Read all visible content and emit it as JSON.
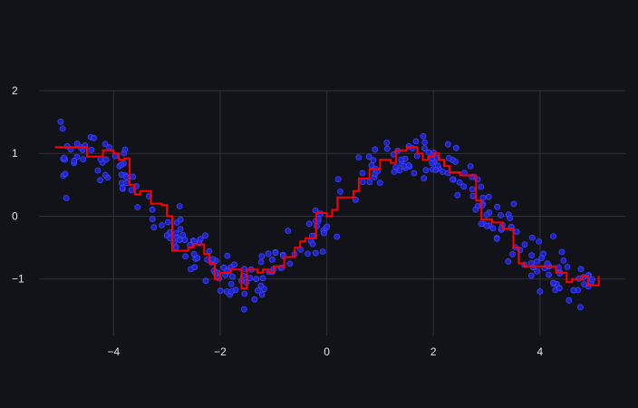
{
  "chart_data": {
    "type": "scatter",
    "title": "",
    "xlabel": "",
    "ylabel": "",
    "xlim": [
      -5.4,
      5.6
    ],
    "ylim": [
      -1.9,
      2.0
    ],
    "grid": true,
    "x_ticks": [
      -4,
      -2,
      0,
      2,
      4
    ],
    "x_tick_labels": [
      "−4",
      "−2",
      "0",
      "2",
      "4"
    ],
    "y_ticks": [
      -1,
      0,
      1,
      2
    ],
    "y_tick_labels": [
      "−1",
      "0",
      "1",
      "2"
    ],
    "scatter": {
      "color": "#2323d4",
      "edge_color": "#3a46ff",
      "trend": "sin(x)",
      "noise_sd": 0.2,
      "x_range": [
        -5.0,
        5.0
      ],
      "count": 300
    },
    "step_series": {
      "color": "#ff0000",
      "x": [
        -5.1,
        -4.8,
        -4.5,
        -4.2,
        -4.0,
        -3.9,
        -3.8,
        -3.7,
        -3.6,
        -3.5,
        -3.3,
        -3.1,
        -3.0,
        -2.9,
        -2.6,
        -2.5,
        -2.3,
        -2.2,
        -2.1,
        -2.0,
        -1.8,
        -1.6,
        -1.5,
        -1.3,
        -1.2,
        -1.1,
        -1.0,
        -0.8,
        -0.6,
        -0.5,
        -0.4,
        -0.3,
        -0.2,
        0.0,
        0.1,
        0.2,
        0.4,
        0.5,
        0.6,
        0.8,
        1.0,
        1.2,
        1.3,
        1.5,
        1.7,
        1.8,
        1.9,
        2.0,
        2.1,
        2.2,
        2.3,
        2.5,
        2.8,
        2.9,
        3.0,
        3.1,
        3.3,
        3.5,
        3.6,
        3.7,
        4.0,
        4.3,
        4.5,
        4.6,
        4.8,
        4.9,
        5.1
      ],
      "y": [
        1.1,
        1.1,
        0.95,
        1.05,
        1.0,
        0.9,
        0.92,
        0.5,
        0.35,
        0.4,
        0.2,
        0.18,
        0.0,
        -0.55,
        -0.5,
        -0.45,
        -0.6,
        -0.75,
        -1.0,
        -0.9,
        -0.85,
        -1.15,
        -0.85,
        -0.9,
        -0.85,
        -0.9,
        -0.8,
        -0.65,
        -0.5,
        -0.4,
        -0.35,
        -0.35,
        0.05,
        0.0,
        0.1,
        0.3,
        0.3,
        0.4,
        0.6,
        0.75,
        0.9,
        0.85,
        1.05,
        1.1,
        1.0,
        0.9,
        0.95,
        1.0,
        0.9,
        0.8,
        0.7,
        0.65,
        0.25,
        -0.05,
        -0.05,
        -0.1,
        -0.2,
        -0.5,
        -0.75,
        -0.8,
        -0.8,
        -0.9,
        -1.05,
        -1.0,
        -0.95,
        -1.1,
        -0.95
      ]
    }
  }
}
